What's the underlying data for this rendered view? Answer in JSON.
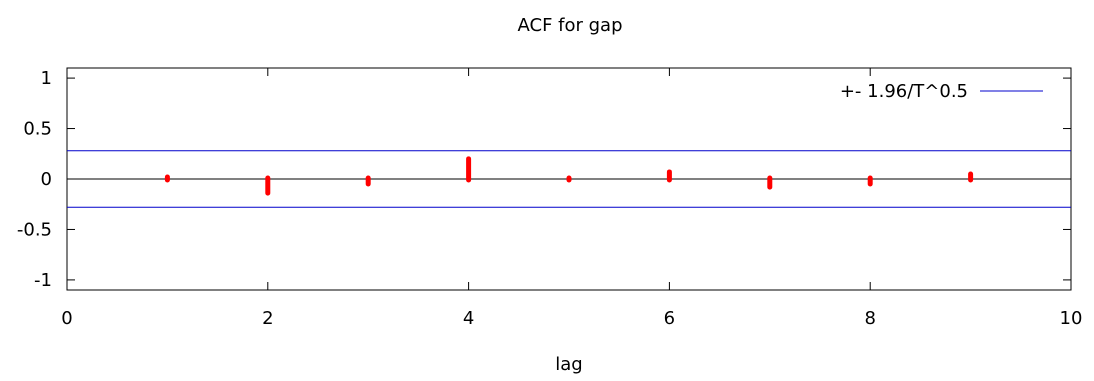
{
  "chart_data": {
    "type": "bar",
    "title": "ACF for gap",
    "xlabel": "lag",
    "ylabel": "",
    "xlim": [
      0,
      10
    ],
    "ylim": [
      -1.1,
      1.1
    ],
    "xticks": [
      0,
      2,
      4,
      6,
      8,
      10
    ],
    "xtick_labels": [
      "0",
      "2",
      "4",
      "6",
      "8",
      "10"
    ],
    "yticks": [
      1,
      0.5,
      0,
      -0.5,
      -1
    ],
    "ytick_labels": [
      "1",
      "0.5",
      "0",
      "-0.5",
      "-1"
    ],
    "lags": [
      1,
      2,
      3,
      4,
      5,
      6,
      7,
      8,
      9
    ],
    "values": [
      0.01,
      -0.13,
      -0.04,
      0.19,
      0.0,
      0.06,
      -0.07,
      -0.04,
      0.04
    ],
    "confidence_band": 0.28,
    "grid": false,
    "legend": {
      "label": "+- 1.96/T^0.5",
      "position": "top-right"
    },
    "colors": {
      "bars": "#ff0000",
      "band": "#0000cc",
      "axis": "#000000"
    }
  }
}
